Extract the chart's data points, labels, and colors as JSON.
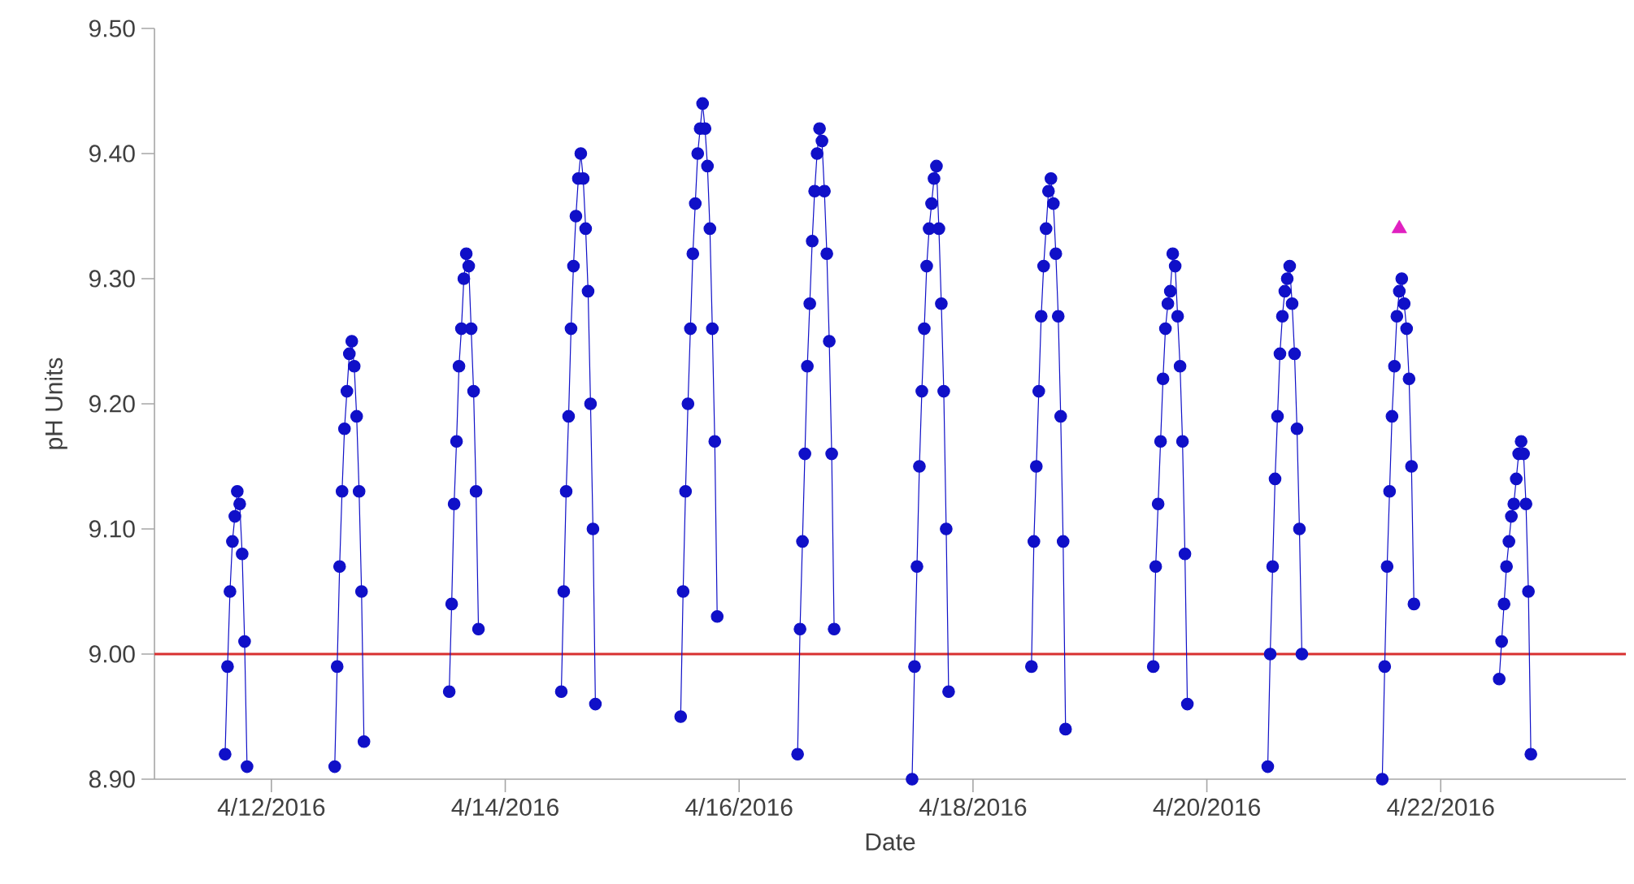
{
  "chart_data": {
    "type": "line",
    "xlabel": "Date",
    "ylabel": "pH Units",
    "xlim": [
      "2016-04-11",
      "2016-04-23T14:00"
    ],
    "ylim": [
      8.9,
      9.5
    ],
    "xticks": [
      {
        "value": "2016-04-12",
        "label": "4/12/2016"
      },
      {
        "value": "2016-04-14",
        "label": "4/14/2016"
      },
      {
        "value": "2016-04-16",
        "label": "4/16/2016"
      },
      {
        "value": "2016-04-18",
        "label": "4/18/2016"
      },
      {
        "value": "2016-04-20",
        "label": "4/20/2016"
      },
      {
        "value": "2016-04-22",
        "label": "4/22/2016"
      }
    ],
    "yticks": [
      {
        "value": 8.9,
        "label": "8.90"
      },
      {
        "value": 9.0,
        "label": "9.00"
      },
      {
        "value": 9.1,
        "label": "9.10"
      },
      {
        "value": 9.2,
        "label": "9.20"
      },
      {
        "value": 9.3,
        "label": "9.30"
      },
      {
        "value": 9.4,
        "label": "9.40"
      },
      {
        "value": 9.5,
        "label": "9.50"
      }
    ],
    "ref_lines": [
      {
        "axis": "y",
        "value": 9.0,
        "color": "#d83030"
      }
    ],
    "line_style": "solid",
    "series": [
      {
        "marker": "circle",
        "color": "#1010c8",
        "x": [
          "2016-04-11T14:30",
          "2016-04-11T15:00",
          "2016-04-11T15:30",
          "2016-04-11T16:00",
          "2016-04-11T16:30",
          "2016-04-11T17:00",
          "2016-04-11T17:30",
          "2016-04-11T18:00",
          "2016-04-11T18:30",
          "2016-04-11T19:00",
          "2016-04-12T00:00",
          "2016-04-12T13:00",
          "2016-04-12T13:30",
          "2016-04-12T14:00",
          "2016-04-12T14:30",
          "2016-04-12T15:00",
          "2016-04-12T15:30",
          "2016-04-12T16:00",
          "2016-04-12T16:30",
          "2016-04-12T17:00",
          "2016-04-12T17:30",
          "2016-04-12T18:00",
          "2016-04-12T18:30",
          "2016-04-12T19:00",
          "2016-04-13T00:00",
          "2016-04-13T12:30",
          "2016-04-13T13:00",
          "2016-04-13T13:30",
          "2016-04-13T14:00",
          "2016-04-13T14:30",
          "2016-04-13T15:00",
          "2016-04-13T15:30",
          "2016-04-13T16:00",
          "2016-04-13T16:30",
          "2016-04-13T17:00",
          "2016-04-13T17:30",
          "2016-04-13T18:00",
          "2016-04-13T18:30",
          "2016-04-14T00:00",
          "2016-04-14T11:30",
          "2016-04-14T12:00",
          "2016-04-14T12:30",
          "2016-04-14T13:00",
          "2016-04-14T13:30",
          "2016-04-14T14:00",
          "2016-04-14T14:30",
          "2016-04-14T15:00",
          "2016-04-14T15:30",
          "2016-04-14T16:00",
          "2016-04-14T16:30",
          "2016-04-14T17:00",
          "2016-04-14T17:30",
          "2016-04-14T18:00",
          "2016-04-14T18:30",
          "2016-04-15T00:00",
          "2016-04-15T12:00",
          "2016-04-15T12:30",
          "2016-04-15T13:00",
          "2016-04-15T13:30",
          "2016-04-15T14:00",
          "2016-04-15T14:30",
          "2016-04-15T15:00",
          "2016-04-15T15:30",
          "2016-04-15T16:00",
          "2016-04-15T16:30",
          "2016-04-15T17:00",
          "2016-04-15T17:30",
          "2016-04-15T18:00",
          "2016-04-15T18:30",
          "2016-04-15T19:00",
          "2016-04-15T19:30",
          "2016-04-16T00:00",
          "2016-04-16T12:00",
          "2016-04-16T12:30",
          "2016-04-16T13:00",
          "2016-04-16T13:30",
          "2016-04-16T14:00",
          "2016-04-16T14:30",
          "2016-04-16T15:00",
          "2016-04-16T15:30",
          "2016-04-16T16:00",
          "2016-04-16T16:30",
          "2016-04-16T17:00",
          "2016-04-16T17:30",
          "2016-04-16T18:00",
          "2016-04-16T18:30",
          "2016-04-16T19:00",
          "2016-04-16T19:30",
          "2016-04-17T00:00",
          "2016-04-17T11:30",
          "2016-04-17T12:00",
          "2016-04-17T12:30",
          "2016-04-17T13:00",
          "2016-04-17T13:30",
          "2016-04-17T14:00",
          "2016-04-17T14:30",
          "2016-04-17T15:00",
          "2016-04-17T15:30",
          "2016-04-17T16:00",
          "2016-04-17T16:30",
          "2016-04-17T17:00",
          "2016-04-17T17:30",
          "2016-04-17T18:00",
          "2016-04-17T18:30",
          "2016-04-17T19:00",
          "2016-04-18T00:00",
          "2016-04-18T12:00",
          "2016-04-18T12:30",
          "2016-04-18T13:00",
          "2016-04-18T13:30",
          "2016-04-18T14:00",
          "2016-04-18T14:30",
          "2016-04-18T15:00",
          "2016-04-18T15:30",
          "2016-04-18T16:00",
          "2016-04-18T16:30",
          "2016-04-18T17:00",
          "2016-04-18T17:30",
          "2016-04-18T18:00",
          "2016-04-18T18:30",
          "2016-04-18T19:00",
          "2016-04-19T00:00",
          "2016-04-19T13:00",
          "2016-04-19T13:30",
          "2016-04-19T14:00",
          "2016-04-19T14:30",
          "2016-04-19T15:00",
          "2016-04-19T15:30",
          "2016-04-19T16:00",
          "2016-04-19T16:30",
          "2016-04-19T17:00",
          "2016-04-19T17:30",
          "2016-04-19T18:00",
          "2016-04-19T18:30",
          "2016-04-19T19:00",
          "2016-04-19T19:30",
          "2016-04-19T20:00",
          "2016-04-20T00:00",
          "2016-04-20T12:30",
          "2016-04-20T13:00",
          "2016-04-20T13:30",
          "2016-04-20T14:00",
          "2016-04-20T14:30",
          "2016-04-20T15:00",
          "2016-04-20T15:30",
          "2016-04-20T16:00",
          "2016-04-20T16:30",
          "2016-04-20T17:00",
          "2016-04-20T17:30",
          "2016-04-20T18:00",
          "2016-04-20T18:30",
          "2016-04-20T19:00",
          "2016-04-20T19:30",
          "2016-04-21T00:00",
          "2016-04-21T12:00",
          "2016-04-21T12:30",
          "2016-04-21T13:00",
          "2016-04-21T13:30",
          "2016-04-21T14:00",
          "2016-04-21T14:30",
          "2016-04-21T15:00",
          "2016-04-21T15:30",
          "2016-04-21T16:00",
          "2016-04-21T16:30",
          "2016-04-21T17:00",
          "2016-04-21T17:30",
          "2016-04-21T18:00",
          "2016-04-21T18:30",
          "2016-04-22T00:00",
          "2016-04-22T12:00",
          "2016-04-22T12:30",
          "2016-04-22T13:00",
          "2016-04-22T13:30",
          "2016-04-22T14:00",
          "2016-04-22T14:30",
          "2016-04-22T15:00",
          "2016-04-22T15:30",
          "2016-04-22T16:00",
          "2016-04-22T16:30",
          "2016-04-22T17:00",
          "2016-04-22T17:30",
          "2016-04-22T18:00",
          "2016-04-22T18:30"
        ],
        "values": [
          8.92,
          8.99,
          9.05,
          9.09,
          9.11,
          9.13,
          9.12,
          9.08,
          9.01,
          8.91,
          null,
          8.91,
          8.99,
          9.07,
          9.13,
          9.18,
          9.21,
          9.24,
          9.25,
          9.23,
          9.19,
          9.13,
          9.05,
          8.93,
          null,
          8.97,
          9.04,
          9.12,
          9.17,
          9.23,
          9.26,
          9.3,
          9.32,
          9.31,
          9.26,
          9.21,
          9.13,
          9.02,
          null,
          8.97,
          9.05,
          9.13,
          9.19,
          9.26,
          9.31,
          9.35,
          9.38,
          9.4,
          9.38,
          9.34,
          9.29,
          9.2,
          9.1,
          8.96,
          null,
          8.95,
          9.05,
          9.13,
          9.2,
          9.26,
          9.32,
          9.36,
          9.4,
          9.42,
          9.44,
          9.42,
          9.39,
          9.34,
          9.26,
          9.17,
          9.03,
          null,
          8.92,
          9.02,
          9.09,
          9.16,
          9.23,
          9.28,
          9.33,
          9.37,
          9.4,
          9.42,
          9.41,
          9.37,
          9.32,
          9.25,
          9.16,
          9.02,
          null,
          8.9,
          8.99,
          9.07,
          9.15,
          9.21,
          9.26,
          9.31,
          9.34,
          9.36,
          9.38,
          9.39,
          9.34,
          9.28,
          9.21,
          9.1,
          8.97,
          null,
          8.99,
          9.09,
          9.15,
          9.21,
          9.27,
          9.31,
          9.34,
          9.37,
          9.38,
          9.36,
          9.32,
          9.27,
          9.19,
          9.09,
          8.94,
          null,
          8.99,
          9.07,
          9.12,
          9.17,
          9.22,
          9.26,
          9.28,
          9.29,
          9.32,
          9.31,
          9.27,
          9.23,
          9.17,
          9.08,
          8.96,
          null,
          8.91,
          9.0,
          9.07,
          9.14,
          9.19,
          9.24,
          9.27,
          9.29,
          9.3,
          9.31,
          9.28,
          9.24,
          9.18,
          9.1,
          9.0,
          null,
          8.9,
          8.99,
          9.07,
          9.13,
          9.19,
          9.23,
          9.27,
          9.29,
          9.3,
          9.28,
          9.26,
          9.22,
          9.15,
          9.04,
          null,
          8.98,
          9.01,
          9.04,
          9.07,
          9.09,
          9.11,
          9.12,
          9.14,
          9.16,
          9.17,
          9.16,
          9.12,
          9.05,
          8.92
        ]
      },
      {
        "type": "scatter",
        "marker": "triangle",
        "color": "#e020c0",
        "x": [
          "2016-04-21T15:30"
        ],
        "values": [
          9.34
        ]
      }
    ]
  }
}
